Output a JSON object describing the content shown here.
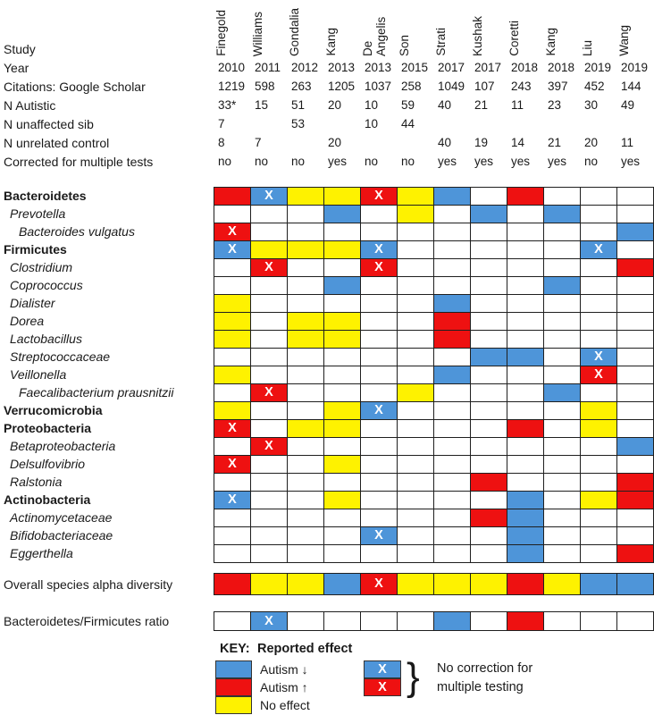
{
  "colors": {
    "autism_down_blue": "#4e95d9",
    "autism_up_red": "#ee1111",
    "no_effect_yellow": "#fef200",
    "empty_white": "#ffffff",
    "grid_border": "#1f1f1f"
  },
  "header": {
    "row_labels": [
      "Study",
      "Year",
      "Citations: Google Scholar",
      "N Autistic",
      "N unaffected sib",
      "N unrelated control",
      "Corrected for multiple tests"
    ],
    "studies": [
      {
        "name": "Finegold",
        "year": "2010",
        "citations": "1219",
        "n_autistic": "33*",
        "n_sib": "7",
        "n_control": "8",
        "corrected": "no"
      },
      {
        "name": "Williams",
        "year": "2011",
        "citations": "598",
        "n_autistic": "15",
        "n_sib": "",
        "n_control": "7",
        "corrected": "no"
      },
      {
        "name": "Gondalia",
        "year": "2012",
        "citations": "263",
        "n_autistic": "51",
        "n_sib": "53",
        "n_control": "",
        "corrected": "no"
      },
      {
        "name": "Kang",
        "year": "2013",
        "citations": "1205",
        "n_autistic": "20",
        "n_sib": "",
        "n_control": "20",
        "corrected": "yes"
      },
      {
        "name": "De Angelis",
        "year": "2013",
        "citations": "1037",
        "n_autistic": "10",
        "n_sib": "10",
        "n_control": "",
        "corrected": "no"
      },
      {
        "name": "Son",
        "year": "2015",
        "citations": "258",
        "n_autistic": "59",
        "n_sib": "44",
        "n_control": "",
        "corrected": "no"
      },
      {
        "name": "Strati",
        "year": "2017",
        "citations": "1049",
        "n_autistic": "40",
        "n_sib": "",
        "n_control": "40",
        "corrected": "yes"
      },
      {
        "name": "Kushak",
        "year": "2017",
        "citations": "107",
        "n_autistic": "21",
        "n_sib": "",
        "n_control": "19",
        "corrected": "yes"
      },
      {
        "name": "Coretti",
        "year": "2018",
        "citations": "243",
        "n_autistic": "11",
        "n_sib": "",
        "n_control": "14",
        "corrected": "yes"
      },
      {
        "name": "Kang",
        "year": "2018",
        "citations": "397",
        "n_autistic": "23",
        "n_sib": "",
        "n_control": "21",
        "corrected": "yes"
      },
      {
        "name": "Liu",
        "year": "2019",
        "citations": "452",
        "n_autistic": "30",
        "n_sib": "",
        "n_control": "20",
        "corrected": "no"
      },
      {
        "name": "Wang",
        "year": "2019",
        "citations": "144",
        "n_autistic": "49",
        "n_sib": "",
        "n_control": "11",
        "corrected": "yes"
      }
    ]
  },
  "chart_data": {
    "type": "heatmap",
    "cell_code_legend": {
      "W": "not reported (white)",
      "B": "Autism decreased (blue)",
      "R": "Autism increased (red)",
      "Y": "No effect (yellow)",
      "BX": "Autism decreased, no correction for multiple testing (blue with X)",
      "RX": "Autism increased, no correction for multiple testing (red with X)"
    },
    "columns": [
      "Finegold",
      "Williams",
      "Gondalia",
      "Kang",
      "De Angelis",
      "Son",
      "Strati",
      "Kushak",
      "Coretti",
      "Kang",
      "Liu",
      "Wang"
    ],
    "rows": [
      {
        "label": "Bacteroidetes",
        "rank": "phylum",
        "cells": [
          "R",
          "BX",
          "Y",
          "Y",
          "RX",
          "Y",
          "B",
          "W",
          "R",
          "W",
          "W",
          "W"
        ]
      },
      {
        "label": "Prevotella",
        "rank": "genus",
        "cells": [
          "W",
          "W",
          "W",
          "B",
          "W",
          "Y",
          "W",
          "B",
          "W",
          "B",
          "W",
          "W"
        ]
      },
      {
        "label": "Bacteroides vulgatus",
        "rank": "species",
        "cells": [
          "RX",
          "W",
          "W",
          "W",
          "W",
          "W",
          "W",
          "W",
          "W",
          "W",
          "W",
          "B"
        ]
      },
      {
        "label": "Firmicutes",
        "rank": "phylum",
        "cells": [
          "BX",
          "Y",
          "Y",
          "Y",
          "BX",
          "W",
          "W",
          "W",
          "W",
          "W",
          "BX",
          "W"
        ]
      },
      {
        "label": "Clostridium",
        "rank": "genus",
        "cells": [
          "W",
          "RX",
          "W",
          "W",
          "RX",
          "W",
          "W",
          "W",
          "W",
          "W",
          "W",
          "R"
        ]
      },
      {
        "label": "Coprococcus",
        "rank": "genus",
        "cells": [
          "W",
          "W",
          "W",
          "B",
          "W",
          "W",
          "W",
          "W",
          "W",
          "B",
          "W",
          "W"
        ]
      },
      {
        "label": "Dialister",
        "rank": "genus",
        "cells": [
          "Y",
          "W",
          "W",
          "W",
          "W",
          "W",
          "B",
          "W",
          "W",
          "W",
          "W",
          "W"
        ]
      },
      {
        "label": "Dorea",
        "rank": "genus",
        "cells": [
          "Y",
          "W",
          "Y",
          "Y",
          "W",
          "W",
          "R",
          "W",
          "W",
          "W",
          "W",
          "W"
        ]
      },
      {
        "label": "Lactobacillus",
        "rank": "genus",
        "cells": [
          "Y",
          "W",
          "Y",
          "Y",
          "W",
          "W",
          "R",
          "W",
          "W",
          "W",
          "W",
          "W"
        ]
      },
      {
        "label": "Streptococcaceae",
        "rank": "genus",
        "cells": [
          "W",
          "W",
          "W",
          "W",
          "W",
          "W",
          "W",
          "B",
          "B",
          "W",
          "BX",
          "W"
        ]
      },
      {
        "label": "Veillonella",
        "rank": "genus",
        "cells": [
          "Y",
          "W",
          "W",
          "W",
          "W",
          "W",
          "B",
          "W",
          "W",
          "W",
          "RX",
          "W"
        ]
      },
      {
        "label": "Faecalibacterium prausnitzii",
        "rank": "species",
        "cells": [
          "W",
          "RX",
          "W",
          "W",
          "W",
          "Y",
          "W",
          "W",
          "W",
          "B",
          "W",
          "W"
        ]
      },
      {
        "label": "Verrucomicrobia",
        "rank": "phylum",
        "cells": [
          "Y",
          "W",
          "W",
          "Y",
          "BX",
          "W",
          "W",
          "W",
          "W",
          "W",
          "Y",
          "W"
        ]
      },
      {
        "label": "Proteobacteria",
        "rank": "phylum",
        "cells": [
          "RX",
          "W",
          "Y",
          "Y",
          "W",
          "W",
          "W",
          "W",
          "R",
          "W",
          "Y",
          "W"
        ]
      },
      {
        "label": "Betaproteobacteria",
        "rank": "genus",
        "cells": [
          "W",
          "RX",
          "W",
          "W",
          "W",
          "W",
          "W",
          "W",
          "W",
          "W",
          "W",
          "B"
        ]
      },
      {
        "label": "Delsulfovibrio",
        "rank": "genus",
        "cells": [
          "RX",
          "W",
          "W",
          "Y",
          "W",
          "W",
          "W",
          "W",
          "W",
          "W",
          "W",
          "W"
        ]
      },
      {
        "label": "Ralstonia",
        "rank": "genus",
        "cells": [
          "W",
          "W",
          "W",
          "W",
          "W",
          "W",
          "W",
          "R",
          "W",
          "W",
          "W",
          "R"
        ]
      },
      {
        "label": "Actinobacteria",
        "rank": "phylum",
        "cells": [
          "BX",
          "W",
          "W",
          "Y",
          "W",
          "W",
          "W",
          "W",
          "B",
          "W",
          "Y",
          "R"
        ]
      },
      {
        "label": "Actinomycetaceae",
        "rank": "genus",
        "cells": [
          "W",
          "W",
          "W",
          "W",
          "W",
          "W",
          "W",
          "R",
          "B",
          "W",
          "W",
          "W"
        ]
      },
      {
        "label": "Bifidobacteriaceae",
        "rank": "genus",
        "cells": [
          "W",
          "W",
          "W",
          "W",
          "BX",
          "W",
          "W",
          "W",
          "B",
          "W",
          "W",
          "W"
        ]
      },
      {
        "label": "Eggerthella",
        "rank": "genus",
        "cells": [
          "W",
          "W",
          "W",
          "W",
          "W",
          "W",
          "W",
          "W",
          "B",
          "W",
          "W",
          "R"
        ]
      }
    ],
    "summary_rows": [
      {
        "label": "Overall species alpha diversity",
        "cells": [
          "R",
          "Y",
          "Y",
          "B",
          "RX",
          "Y",
          "Y",
          "Y",
          "R",
          "Y",
          "B",
          "B"
        ]
      },
      {
        "label": "Bacteroidetes/Firmicutes ratio",
        "cells": [
          "W",
          "BX",
          "W",
          "W",
          "W",
          "W",
          "B",
          "W",
          "R",
          "W",
          "W",
          "W"
        ]
      }
    ]
  },
  "key": {
    "heading_label": "KEY:",
    "heading_text": "Reported effect",
    "items": [
      {
        "code": "B",
        "label": "Autism ↓"
      },
      {
        "code": "R",
        "label": "Autism ↑"
      },
      {
        "code": "Y",
        "label": "No effect"
      }
    ],
    "x_items": [
      {
        "code": "BX"
      },
      {
        "code": "RX"
      }
    ],
    "x_mark": "X",
    "brace": "}",
    "x_note_line1": "No correction for",
    "x_note_line2": "multiple testing"
  }
}
